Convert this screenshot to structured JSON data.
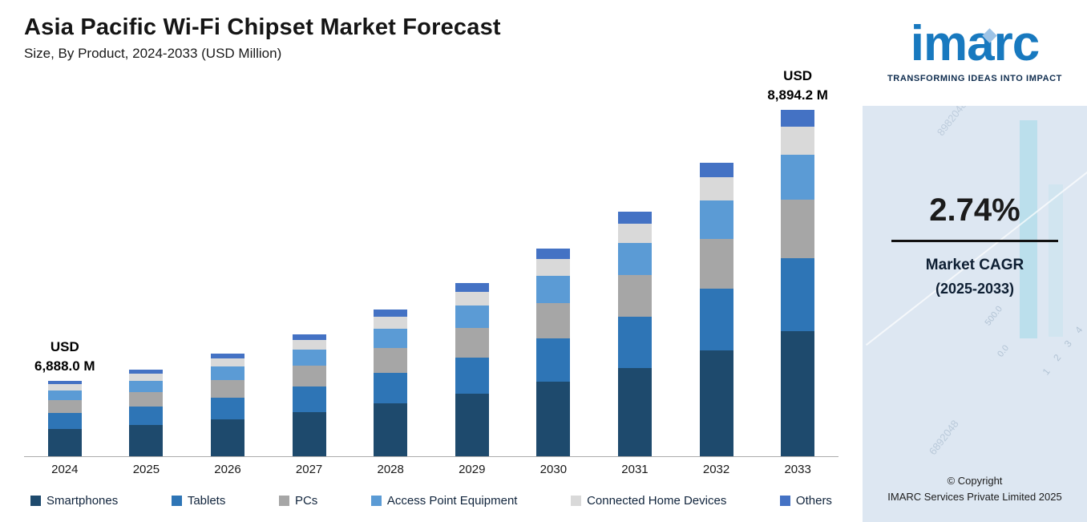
{
  "header": {
    "title": "Asia Pacific Wi-Fi Chipset Market Forecast",
    "subtitle": "Size, By Product, 2024-2033 (USD Million)"
  },
  "chart_data": {
    "type": "bar",
    "variant": "stacked",
    "title": "Asia Pacific Wi-Fi Chipset Market Forecast",
    "subtitle": "Size, By Product, 2024-2033 (USD Million)",
    "categories": [
      "2024",
      "2025",
      "2026",
      "2027",
      "2028",
      "2029",
      "2030",
      "2031",
      "2032",
      "2033"
    ],
    "value_units": "relative visual height units; only 2024 and 2033 totals are labeled in USD Million",
    "labeled_totals": {
      "2024": 6888.0,
      "2033": 8894.2
    },
    "series": [
      {
        "name": "Smartphones",
        "color": "#1e4a6d",
        "values": [
          34,
          39,
          46,
          55,
          66,
          78,
          93,
          110,
          132,
          156
        ]
      },
      {
        "name": "Tablets",
        "color": "#2e75b6",
        "values": [
          20,
          23,
          27,
          32,
          38,
          45,
          54,
          64,
          77,
          91
        ]
      },
      {
        "name": "PCs",
        "color": "#a6a6a6",
        "values": [
          16,
          18,
          22,
          26,
          31,
          37,
          44,
          52,
          62,
          73
        ]
      },
      {
        "name": "Access Point Equipment",
        "color": "#5b9bd5",
        "values": [
          12,
          14,
          17,
          20,
          24,
          28,
          34,
          40,
          48,
          56
        ]
      },
      {
        "name": "Connected Home Devices",
        "color": "#d9d9d9",
        "values": [
          8,
          9,
          10,
          12,
          15,
          17,
          21,
          24,
          29,
          35
        ]
      },
      {
        "name": "Others",
        "color": "#4472c4",
        "values": [
          4,
          5,
          6,
          7,
          9,
          11,
          13,
          15,
          18,
          21
        ]
      }
    ],
    "annotations": [
      {
        "category": "2024",
        "lines": [
          "USD",
          "6,888.0 M"
        ]
      },
      {
        "category": "2033",
        "lines": [
          "USD",
          "8,894.2 M"
        ]
      }
    ],
    "legend_position": "bottom",
    "grid": false,
    "y_axis_shown": false
  },
  "sidebar": {
    "logo_text": "imarc",
    "tagline": "TRANSFORMING IDEAS INTO IMPACT",
    "cagr_value": "2.74%",
    "cagr_label_1": "Market CAGR",
    "cagr_label_2": "(2025-2033)",
    "copyright_1": "© Copyright",
    "copyright_2": "IMARC Services Private Limited 2025",
    "decor": [
      "500.0",
      "0.0",
      "1 2 3 4",
      "6892048",
      "8982048"
    ]
  }
}
